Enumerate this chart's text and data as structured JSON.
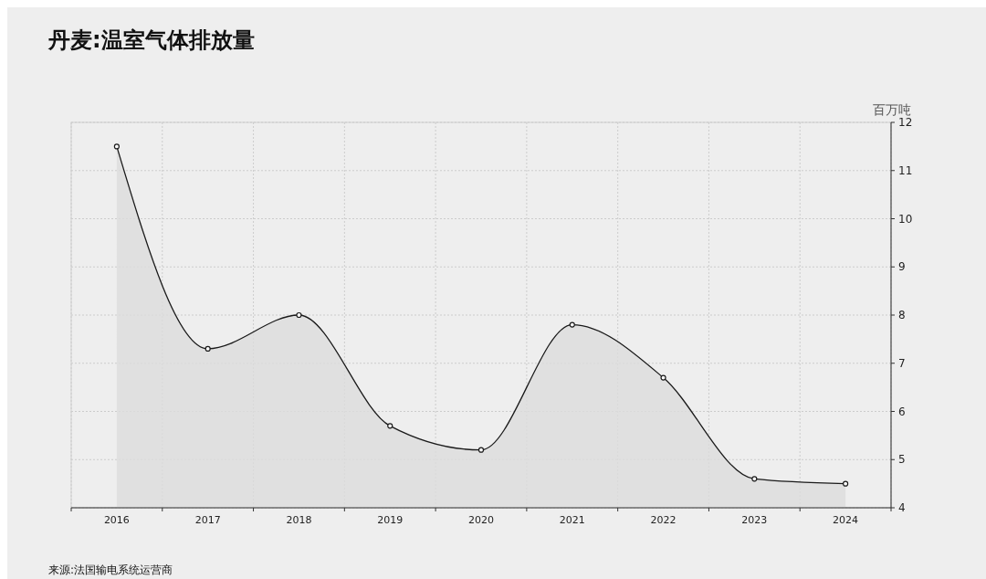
{
  "chart_data": {
    "type": "area",
    "title": "丹麦:温室气体排放量",
    "ylabel": "百万吨",
    "categories": [
      "2016",
      "2017",
      "2018",
      "2019",
      "2020",
      "2021",
      "2022",
      "2023",
      "2024"
    ],
    "series": [
      {
        "color": "#1a1a1a",
        "values": [
          11.5,
          7.3,
          8.0,
          5.7,
          5.2,
          7.8,
          6.7,
          4.6,
          4.5
        ]
      }
    ],
    "ylim": [
      4,
      12
    ],
    "yticks": [
      4,
      5,
      6,
      7,
      8,
      9,
      10,
      11,
      12
    ],
    "grid": true,
    "marker": "circle",
    "line_style": "solid",
    "annotations": [
      "来源:法国输电系统运营商"
    ]
  }
}
